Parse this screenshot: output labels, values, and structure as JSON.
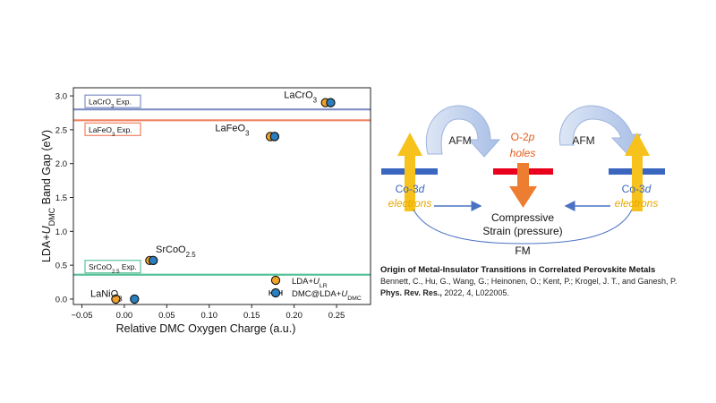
{
  "chart_data": {
    "type": "scatter",
    "xlabel": "Relative DMC Oxygen Charge (a.u.)",
    "ylabel_parts": [
      "LDA+",
      "U",
      "DMC",
      " Band Gap (eV)"
    ],
    "xlim": [
      -0.06,
      0.29
    ],
    "ylim": [
      -0.08,
      3.12
    ],
    "x_ticks": [
      {
        "v": -0.05,
        "label": "−0.05"
      },
      {
        "v": 0.0,
        "label": "0.00"
      },
      {
        "v": 0.05,
        "label": "0.05"
      },
      {
        "v": 0.1,
        "label": "0.10"
      },
      {
        "v": 0.15,
        "label": "0.15"
      },
      {
        "v": 0.2,
        "label": "0.20"
      },
      {
        "v": 0.25,
        "label": "0.25"
      }
    ],
    "y_ticks": [
      {
        "v": 0.0,
        "label": "0.0"
      },
      {
        "v": 0.5,
        "label": "0.5"
      },
      {
        "v": 1.0,
        "label": "1.0"
      },
      {
        "v": 1.5,
        "label": "1.5"
      },
      {
        "v": 2.0,
        "label": "2.0"
      },
      {
        "v": 2.5,
        "label": "2.5"
      },
      {
        "v": 3.0,
        "label": "3.0"
      }
    ],
    "reference_lines": [
      {
        "y": 2.8,
        "color": "#7f8fc4",
        "label_main": "LaCrO",
        "label_sub": "3",
        "label_tail": " Exp.",
        "label_pos": "above"
      },
      {
        "y": 2.64,
        "color": "#f08262",
        "label_main": "LaFeO",
        "label_sub": "3",
        "label_tail": " Exp.",
        "label_pos": "below"
      },
      {
        "y": 0.36,
        "color": "#59c29b",
        "label_main": "SrCoO",
        "label_sub": "2.5",
        "label_tail": " Exp.",
        "label_pos": "above"
      }
    ],
    "series": [
      {
        "name_main": "LDA+",
        "name_italic": "U",
        "name_sub": "LR",
        "color": "#f2a129",
        "points": [
          {
            "x": -0.01,
            "y": 0.0
          },
          {
            "x": 0.03,
            "y": 0.57
          },
          {
            "x": 0.172,
            "y": 2.4
          },
          {
            "x": 0.237,
            "y": 2.9
          }
        ]
      },
      {
        "name_main": "DMC@LDA+",
        "name_italic": "U",
        "name_sub": "DMC",
        "color": "#2a7fc1",
        "points": [
          {
            "x": 0.012,
            "y": 0.0
          },
          {
            "x": 0.034,
            "y": 0.57
          },
          {
            "x": 0.177,
            "y": 2.4
          },
          {
            "x": 0.243,
            "y": 2.9
          }
        ]
      }
    ],
    "annotations": [
      {
        "main": "LaNiO",
        "sub": "3",
        "x": -0.04,
        "y": 0.03
      },
      {
        "main": "SrCoO",
        "sub": "2.5",
        "x": 0.037,
        "y": 0.69
      },
      {
        "main": "LaFeO",
        "sub": "3",
        "x": 0.107,
        "y": 2.48
      },
      {
        "main": "LaCrO",
        "sub": "3",
        "x": 0.188,
        "y": 2.97
      }
    ]
  },
  "diagram": {
    "afm_left": "AFM",
    "afm_right": "AFM",
    "center_label_main": "O-2",
    "center_label_italic": "p",
    "center_label_sub": "holes",
    "left_label_main": "Co-3",
    "left_label_italic": "d",
    "left_label_sub": "electrons",
    "right_label_main": "Co-3",
    "right_label_italic": "d",
    "right_label_sub": "electrons",
    "strain_line1": "Compressive",
    "strain_line2": "Strain (pressure)",
    "fm_label": "FM"
  },
  "citation": {
    "title": "Origin of Metal-Insulator Transitions in Correlated Perovskite Metals",
    "authors": "Bennett, C., Hu, G., Wang, G.; Heinonen, O.; Kent, P.; Krogel, J. T., and Ganesh, P.",
    "journal": "Phys. Rev. Res.,",
    "details": " 2022, 4, L022005."
  }
}
